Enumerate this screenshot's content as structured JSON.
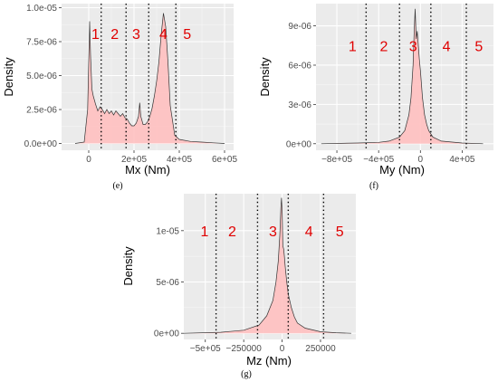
{
  "chart_data": [
    {
      "type": "area",
      "panel_label": "(e)",
      "xlabel": "Mx (Nm)",
      "ylabel": "Density",
      "xlim": [
        -120000,
        640000
      ],
      "ylim": [
        -5e-07,
        1.03e-05
      ],
      "xticks": [
        0,
        200000,
        400000,
        600000
      ],
      "xtick_labels": [
        "0",
        "2e+05",
        "4e+05",
        "6e+05"
      ],
      "yticks": [
        0,
        2.5e-06,
        5e-06,
        7.5e-06,
        1e-05
      ],
      "ytick_labels": [
        "0.0e+00",
        "2.5e-06",
        "5.0e-06",
        "7.5e-06",
        "1.0e-05"
      ],
      "vlines": [
        55000,
        165000,
        265000,
        385000
      ],
      "region_labels": [
        "1",
        "2",
        "3",
        "4",
        "5"
      ],
      "region_label_x": [
        30000,
        115000,
        210000,
        330000,
        435000
      ],
      "region_label_y": 8.1e-06,
      "curve": {
        "x": [
          -60000,
          -20000,
          -5000,
          0,
          4000,
          8000,
          14000,
          20000,
          30000,
          40000,
          50000,
          60000,
          70000,
          80000,
          90000,
          100000,
          110000,
          120000,
          130000,
          140000,
          150000,
          160000,
          170000,
          180000,
          190000,
          200000,
          210000,
          220000,
          225000,
          230000,
          240000,
          250000,
          260000,
          270000,
          280000,
          290000,
          300000,
          310000,
          320000,
          330000,
          340000,
          350000,
          360000,
          380000,
          400000,
          450000,
          500000,
          550000,
          600000
        ],
        "y": [
          0,
          1e-07,
          2.5e-06,
          6e-06,
          9e-06,
          6.5e-06,
          4e-06,
          3.5e-06,
          2.9e-06,
          2.4e-06,
          2.7e-06,
          2.5e-06,
          2.2e-06,
          2.5e-06,
          2.2e-06,
          2.4e-06,
          2.1e-06,
          2.4e-06,
          2.2e-06,
          2e-06,
          2.2e-06,
          1.9e-06,
          1.8e-06,
          1.5e-06,
          1.3e-06,
          1.3e-06,
          1.5e-06,
          2e-06,
          3e-06,
          2e-06,
          1.4e-06,
          1.4e-06,
          1.6e-06,
          2e-06,
          2.6e-06,
          3.5e-06,
          4.6e-06,
          6e-06,
          8e-06,
          9.6e-06,
          8.6e-06,
          6e-06,
          2.8e-06,
          6e-07,
          3e-07,
          1.5e-07,
          1e-07,
          5e-08,
          0
        ]
      }
    },
    {
      "type": "area",
      "panel_label": "(f)",
      "xlabel": "My (Nm)",
      "ylabel": "Density",
      "xlim": [
        -1000000,
        700000
      ],
      "ylim": [
        -5e-07,
        1.07e-05
      ],
      "xticks": [
        -800000,
        -400000,
        0,
        400000
      ],
      "xtick_labels": [
        "−8e+05",
        "−4e+05",
        "0",
        "4e+05"
      ],
      "yticks": [
        0,
        3e-06,
        6e-06,
        9e-06
      ],
      "ytick_labels": [
        "0e+00",
        "3e-06",
        "6e-06",
        "9e-06"
      ],
      "vlines": [
        -520000,
        -200000,
        100000,
        440000
      ],
      "region_labels": [
        "1",
        "2",
        "3",
        "4",
        "5"
      ],
      "region_label_x": [
        -650000,
        -350000,
        -70000,
        250000,
        560000
      ],
      "region_label_y": 7.5e-06,
      "curve": {
        "x": [
          -950000,
          -600000,
          -400000,
          -300000,
          -200000,
          -150000,
          -110000,
          -90000,
          -70000,
          -60000,
          -50000,
          -40000,
          -30000,
          -20000,
          -10000,
          0,
          10000,
          20000,
          40000,
          60000,
          80000,
          120000,
          200000,
          400000,
          600000
        ],
        "y": [
          0,
          5e-08,
          1e-07,
          2e-07,
          5e-07,
          1e-06,
          2.2e-06,
          3.5e-06,
          6e-06,
          8.5e-06,
          1.03e-05,
          8e-06,
          8.6e-06,
          7.5e-06,
          6.5e-06,
          5.6e-06,
          4.6e-06,
          3.5e-06,
          2.2e-06,
          1.5e-06,
          1e-06,
          5e-07,
          2e-07,
          5e-08,
          0
        ]
      }
    },
    {
      "type": "area",
      "panel_label": "(g)",
      "xlabel": "Mz (Nm)",
      "ylabel": "Density",
      "xlim": [
        -640000,
        480000
      ],
      "ylim": [
        -6e-07,
        1.36e-05
      ],
      "xticks": [
        -500000,
        -250000,
        0,
        250000
      ],
      "xtick_labels": [
        "−5e+05",
        "−250000",
        "0",
        "250000"
      ],
      "yticks": [
        0,
        5e-06,
        1e-05
      ],
      "ytick_labels": [
        "0e+00",
        "5e-06",
        "1e-05"
      ],
      "vlines": [
        -430000,
        -160000,
        40000,
        270000
      ],
      "region_labels": [
        "1",
        "2",
        "3",
        "4",
        "5"
      ],
      "region_label_x": [
        -505000,
        -325000,
        -60000,
        175000,
        375000
      ],
      "region_label_y": 1e-05,
      "curve": {
        "x": [
          -640000,
          -400000,
          -250000,
          -150000,
          -100000,
          -60000,
          -40000,
          -25000,
          -15000,
          -8000,
          -4000,
          0,
          5000,
          10000,
          15000,
          20000,
          30000,
          40000,
          60000,
          80000,
          100000,
          150000,
          250000,
          350000,
          450000
        ],
        "y": [
          0,
          1e-07,
          3e-07,
          8e-07,
          1.7e-06,
          3.2e-06,
          5e-06,
          7e-06,
          9.5e-06,
          1.22e-05,
          1.32e-05,
          1.2e-05,
          8.5e-06,
          8.2e-06,
          7.5e-06,
          6.5e-06,
          5e-06,
          3.8e-06,
          2.5e-06,
          1.6e-06,
          1e-06,
          5e-07,
          1.5e-07,
          5e-08,
          0
        ]
      }
    }
  ]
}
